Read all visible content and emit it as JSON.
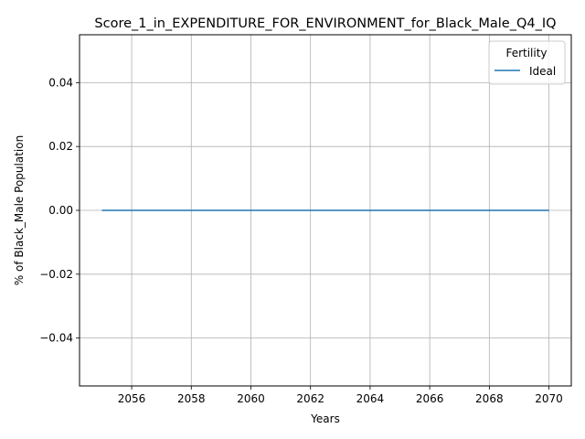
{
  "chart_data": {
    "type": "line",
    "title": "Score_1_in_EXPENDITURE_FOR_ENVIRONMENT_for_Black_Male_Q4_IQ",
    "xlabel": "Years",
    "ylabel": "% of Black_Male Population",
    "xlim": [
      2054.25,
      2070.75
    ],
    "ylim": [
      -0.055,
      0.055
    ],
    "xticks": [
      2056,
      2058,
      2060,
      2062,
      2064,
      2066,
      2068,
      2070
    ],
    "yticks": [
      -0.04,
      -0.02,
      0.0,
      0.02,
      0.04
    ],
    "ytick_labels": [
      "−0.04",
      "−0.02",
      "0.00",
      "0.02",
      "0.04"
    ],
    "grid": true,
    "legend": {
      "title": "Fertility",
      "placement": "top-right",
      "entries": [
        "Ideal"
      ]
    },
    "series": [
      {
        "name": "Ideal",
        "color": "#1f77b4",
        "x": [
          2055,
          2056,
          2057,
          2058,
          2059,
          2060,
          2061,
          2062,
          2063,
          2064,
          2065,
          2066,
          2067,
          2068,
          2069,
          2070
        ],
        "y": [
          0,
          0,
          0,
          0,
          0,
          0,
          0,
          0,
          0,
          0,
          0,
          0,
          0,
          0,
          0,
          0
        ]
      }
    ]
  }
}
